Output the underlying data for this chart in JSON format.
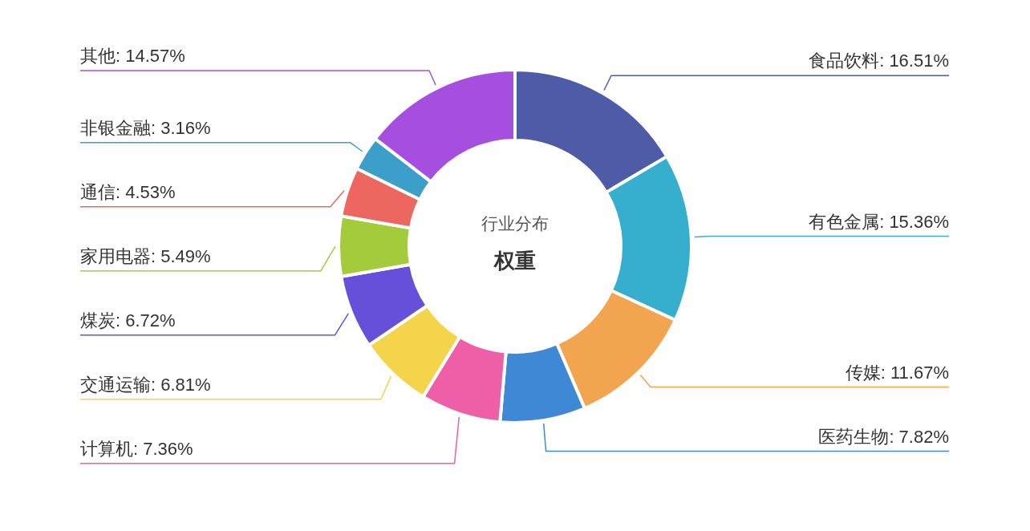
{
  "chart_data": {
    "type": "donut",
    "title": "行业分布",
    "subtitle": "权重",
    "categories": [
      "食品饮料",
      "有色金属",
      "传媒",
      "医药生物",
      "计算机",
      "交通运输",
      "煤炭",
      "家用电器",
      "通信",
      "非银金融",
      "其他"
    ],
    "values": [
      16.51,
      15.36,
      11.67,
      7.82,
      7.36,
      6.81,
      6.72,
      5.49,
      4.53,
      3.16,
      14.57
    ],
    "value_labels": [
      ": 16.51%",
      ": 15.36%",
      ": 11.67%",
      ": 7.82%",
      ": 7.36%",
      ": 6.81%",
      ": 6.72%",
      ": 5.49%",
      ": 4.53%",
      ": 3.16%",
      ": 14.57%"
    ],
    "colors": [
      "#4e5ba6",
      "#36afce",
      "#f2a44f",
      "#3f88d6",
      "#ee5fa7",
      "#f4d44a",
      "#6750d9",
      "#a4cb3c",
      "#ee6660",
      "#3b9fc9",
      "#a64ee0"
    ],
    "legend": false
  }
}
